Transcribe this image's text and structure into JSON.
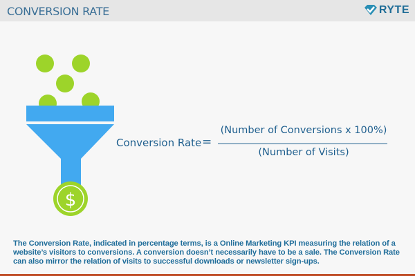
{
  "header": {
    "title": "CONVERSION RATE",
    "logo_text": "RYTE"
  },
  "formula": {
    "lhs": "Conversion Rate",
    "equals": "=",
    "numerator": "(Number of Conversions x 100%)",
    "denominator": "(Number of Visits)"
  },
  "description": "The Conversion Rate, indicated in percentage terms, is a Online Marketing KPI measuring the relation of a website’s visitors to conversions. A conversion doesn’t necessarily have to be a sale. The Conversion Rate can also mirror the relation of visits to successful downloads or newsletter sign-ups.",
  "illustration": {
    "icon": "funnel-with-dollar",
    "symbol": "$"
  },
  "colors": {
    "green": "#9dd42a",
    "funnel": "#42a9f0",
    "text": "#1f5f8e",
    "accent_bar": "#c0502a"
  }
}
